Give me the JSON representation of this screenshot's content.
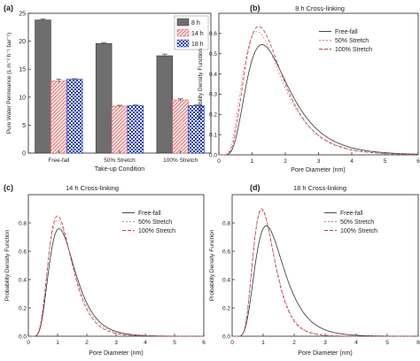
{
  "chart_data": [
    {
      "type": "bar",
      "panel_label": "(a)",
      "title": "",
      "xlabel": "Take-up Condition",
      "ylabel": "Pure Water Permeance (L m⁻² h⁻¹ bar⁻¹)",
      "ylim": [
        0,
        25
      ],
      "yticks": [
        "0",
        "5",
        "10",
        "15",
        "20",
        "25"
      ],
      "categories": [
        "Free-fall",
        "50% Stretch",
        "100% Stretch"
      ],
      "series": [
        {
          "name": "8 h",
          "values": [
            23.8,
            19.6,
            17.4
          ],
          "errors": [
            0.2,
            0.15,
            0.3
          ],
          "color": "#6e6e6e",
          "pattern": "solid"
        },
        {
          "name": "14 h",
          "values": [
            12.9,
            8.4,
            9.5
          ],
          "errors": [
            0.3,
            0.15,
            0.2
          ],
          "color": "#e06666",
          "pattern": "diagonal"
        },
        {
          "name": "18 h",
          "values": [
            13.2,
            8.5,
            8.5
          ],
          "errors": [
            0.1,
            0.1,
            0.1
          ],
          "color": "#1f3dbf",
          "pattern": "checker"
        }
      ],
      "legend_position": "top-right",
      "grid": false
    },
    {
      "type": "line",
      "panel_label": "(b)",
      "title": "8 h Cross-linking",
      "xlabel": "Pore Diameter (nm)",
      "ylabel": "Probability Density Function",
      "xlim": [
        0,
        6
      ],
      "ylim": [
        0,
        0.7
      ],
      "xticks": [
        "0",
        "1",
        "2",
        "3",
        "4",
        "5",
        "6"
      ],
      "yticks": [
        "0.0",
        "0.1",
        "0.2",
        "0.3",
        "0.4",
        "0.5",
        "0.6"
      ],
      "series": [
        {
          "name": "Free-fall",
          "peak_x": 1.3,
          "peak_y": 0.545,
          "sigma": 0.48,
          "color": "#333333",
          "dash": "none"
        },
        {
          "name": "50% Stretch",
          "peak_x": 1.15,
          "peak_y": 0.61,
          "sigma": 0.5,
          "color": "#d97b8c",
          "dash": "2,2"
        },
        {
          "name": "100% Stretch",
          "peak_x": 1.2,
          "peak_y": 0.635,
          "sigma": 0.47,
          "color": "#b84040",
          "dash": "4,2"
        }
      ],
      "legend_position": "top-right",
      "grid": false
    },
    {
      "type": "line",
      "panel_label": "(c)",
      "title": "14 h Cross-linking",
      "xlabel": "Pore Diameter (nm)",
      "ylabel": "Probability Density Function",
      "xlim": [
        0,
        6
      ],
      "ylim": [
        0,
        1.0
      ],
      "xticks": [
        "0",
        "1",
        "2",
        "3",
        "4",
        "5",
        "6"
      ],
      "yticks": [
        "0.0",
        "0.2",
        "0.4",
        "0.6",
        "0.8"
      ],
      "series": [
        {
          "name": "Free-fall",
          "peak_x": 1.05,
          "peak_y": 0.76,
          "sigma": 0.42,
          "color": "#333333",
          "dash": "none"
        },
        {
          "name": "50% Stretch",
          "peak_x": 1.0,
          "peak_y": 0.82,
          "sigma": 0.42,
          "color": "#d97b8c",
          "dash": "2,2"
        },
        {
          "name": "100% Stretch",
          "peak_x": 1.0,
          "peak_y": 0.85,
          "sigma": 0.4,
          "color": "#b84040",
          "dash": "4,2"
        }
      ],
      "legend_position": "top-right",
      "grid": false
    },
    {
      "type": "line",
      "panel_label": "(d)",
      "title": "18 h Cross-linking",
      "xlabel": "Pore Diameter (nm)",
      "ylabel": "Probability Density Function",
      "xlim": [
        0,
        6
      ],
      "ylim": [
        0,
        1.0
      ],
      "xticks": [
        "0",
        "1",
        "2",
        "3",
        "4",
        "5",
        "6"
      ],
      "yticks": [
        "0.0",
        "0.2",
        "0.4",
        "0.6",
        "0.8"
      ],
      "series": [
        {
          "name": "Free-fall",
          "peak_x": 1.1,
          "peak_y": 0.78,
          "sigma": 0.42,
          "color": "#333333",
          "dash": "none"
        },
        {
          "name": "50% Stretch",
          "peak_x": 0.95,
          "peak_y": 0.89,
          "sigma": 0.37,
          "color": "#d97b8c",
          "dash": "2,2"
        },
        {
          "name": "100% Stretch",
          "peak_x": 0.95,
          "peak_y": 0.9,
          "sigma": 0.36,
          "color": "#b84040",
          "dash": "4,2"
        }
      ],
      "legend_position": "top-right",
      "grid": false
    }
  ]
}
